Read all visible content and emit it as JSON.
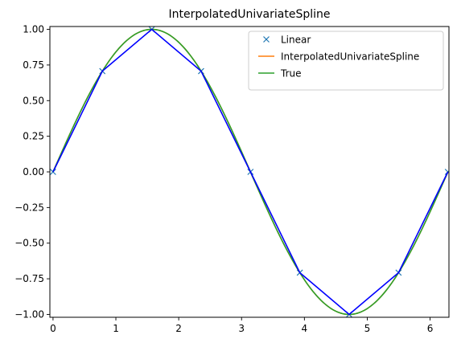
{
  "chart_data": {
    "type": "line",
    "title": "InterpolatedUnivariateSpline",
    "xlabel": "",
    "ylabel": "",
    "xlim": [
      -0.05,
      6.3
    ],
    "ylim": [
      -1.02,
      1.02
    ],
    "xticks": [
      0,
      1,
      2,
      3,
      4,
      5,
      6
    ],
    "yticks": [
      -1.0,
      -0.75,
      -0.5,
      -0.25,
      0.0,
      0.25,
      0.5,
      0.75,
      1.0
    ],
    "xtick_labels": [
      "0",
      "1",
      "2",
      "3",
      "4",
      "5",
      "6"
    ],
    "ytick_labels": [
      "−1.00",
      "−0.75",
      "−0.50",
      "−0.25",
      "0.00",
      "0.25",
      "0.50",
      "0.75",
      "1.00"
    ],
    "grid": false,
    "legend_position": "top-right",
    "series": [
      {
        "name": "Linear",
        "style": "markers",
        "color": "#1f77b4",
        "x": [
          0.0,
          0.785,
          1.571,
          2.356,
          3.142,
          3.927,
          4.712,
          5.498,
          6.283
        ],
        "y": [
          0.0,
          0.707,
          1.0,
          0.707,
          0.0,
          -0.707,
          -1.0,
          -0.707,
          0.0
        ]
      },
      {
        "name": "InterpolatedUnivariateSpline",
        "style": "line",
        "color": "#ff7f0e",
        "function": "spline approximating sin(x) through the sample points",
        "x": [
          0.0,
          0.524,
          1.047,
          1.571,
          2.094,
          2.618,
          3.142,
          3.665,
          4.189,
          4.712,
          5.236,
          5.76,
          6.283
        ],
        "y": [
          0.0,
          0.5,
          0.866,
          1.0,
          0.866,
          0.5,
          0.0,
          -0.5,
          -0.866,
          -1.0,
          -0.866,
          -0.5,
          0.0
        ]
      },
      {
        "name": "True",
        "style": "line",
        "color": "#2ca02c",
        "function": "sin(x)",
        "x": [
          0.0,
          0.524,
          1.047,
          1.571,
          2.094,
          2.618,
          3.142,
          3.665,
          4.189,
          4.712,
          5.236,
          5.76,
          6.283
        ],
        "y": [
          0.0,
          0.5,
          0.866,
          1.0,
          0.866,
          0.5,
          0.0,
          -0.5,
          -0.866,
          -1.0,
          -0.866,
          -0.5,
          0.0
        ]
      },
      {
        "style": "line",
        "color": "#0000ff",
        "x": [
          0.0,
          0.785,
          1.571,
          2.356,
          3.142,
          3.927,
          4.712,
          5.498,
          6.283
        ],
        "y": [
          0.0,
          0.707,
          1.0,
          0.707,
          0.0,
          -0.707,
          -1.0,
          -0.707,
          0.0
        ]
      }
    ]
  }
}
